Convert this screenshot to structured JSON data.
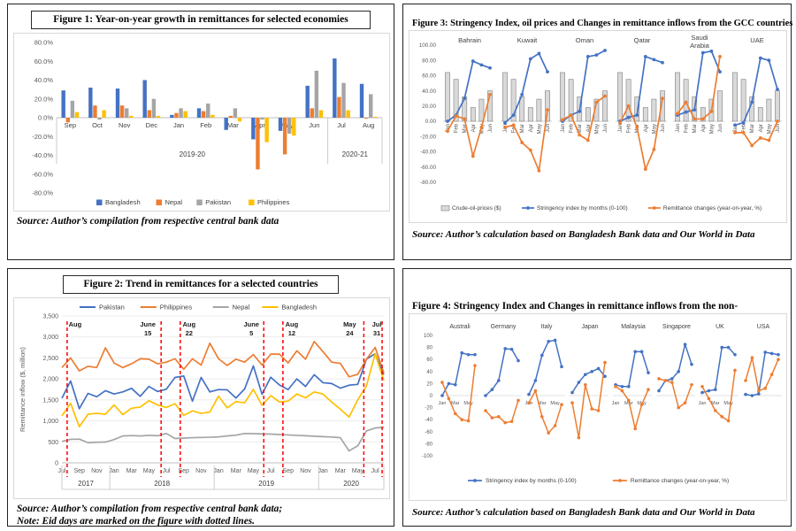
{
  "colors": {
    "blue": "#4472c4",
    "orange": "#ed7d31",
    "gray": "#a5a5a5",
    "gold": "#ffc000",
    "oil_fill": "#d9d9d9",
    "oil_stroke": "#7f7f7f",
    "eid_red": "#ff0000"
  },
  "chart_data": [
    {
      "id": "figure1",
      "type": "bar",
      "title": "Figure 1: Year-on-year growth in remittances for selected economies",
      "source": "Source: Author’s compilation from respective central bank data",
      "categories": [
        "Sep",
        "Oct",
        "Nov",
        "Dec",
        "Jan",
        "Feb",
        "Mar",
        "Apr",
        "May",
        "Jun",
        "Jul",
        "Aug"
      ],
      "period_groups": [
        {
          "label": "2019-20",
          "from": 0,
          "to": 9
        },
        {
          "label": "2020-21",
          "from": 10,
          "to": 11
        }
      ],
      "ylim": [
        -80,
        80
      ],
      "ytick_step": 20,
      "ytick_suffix": ".0%",
      "series": [
        {
          "name": "Bangladesh",
          "color": "#4472c4",
          "values": [
            29,
            32,
            31,
            40,
            3,
            10,
            -13,
            -23,
            -14,
            34,
            63,
            36
          ]
        },
        {
          "name": "Nepal",
          "color": "#ed7d31",
          "values": [
            -5,
            13,
            13,
            8,
            5,
            7,
            2,
            -55,
            -39,
            10,
            22,
            -1
          ]
        },
        {
          "name": "Pakistan",
          "color": "#a5a5a5",
          "values": [
            18,
            -2,
            10,
            20,
            10,
            15,
            10,
            -2,
            -17,
            50,
            37,
            25
          ]
        },
        {
          "name": "Philippines",
          "color": "#ffc000",
          "values": [
            6,
            8,
            2,
            2,
            7,
            3,
            -4,
            -26,
            -19,
            8,
            8,
            1
          ]
        }
      ]
    },
    {
      "id": "figure2",
      "type": "line",
      "title": "Figure 2: Trend in remittances for a selected countries",
      "source": "Source: Author’s compilation from respective central bank data;",
      "note": "Note: Eid days are marked on the figure with dotted lines.",
      "ylabel": "Remittance inflow ($, million)",
      "ylim": [
        0,
        3500
      ],
      "ytick_step": 500,
      "xtick_labels": [
        "Jul",
        "Sep",
        "Nov",
        "Jan",
        "Mar",
        "May",
        "Jul",
        "Sep",
        "Nov",
        "Jan",
        "Mar",
        "May",
        "Jul",
        "Sep",
        "Nov",
        "Jan",
        "Mar",
        "May",
        "Jul"
      ],
      "years": [
        {
          "label": "2017",
          "from": 0,
          "to": 5
        },
        {
          "label": "2018",
          "from": 6,
          "to": 17
        },
        {
          "label": "2019",
          "from": 18,
          "to": 29
        },
        {
          "label": "2020",
          "from": 30,
          "to": 37
        }
      ],
      "eid_lines": [
        {
          "label": "Aug",
          "idx": 0.6,
          "dx": 9
        },
        {
          "label": "June 15",
          "idx": 11.4,
          "dx": -15
        },
        {
          "label": "Aug 22",
          "idx": 13.6,
          "dx": 10
        },
        {
          "label": "June 5",
          "idx": 23.2,
          "dx": -14
        },
        {
          "label": "Aug 12",
          "idx": 25.4,
          "dx": 10
        },
        {
          "label": "May 24",
          "idx": 34.7,
          "dx": -16
        },
        {
          "label": "Jul 31",
          "idx": 36.8,
          "dx": -6
        }
      ],
      "series": [
        {
          "name": "Pakistan",
          "color": "#4472c4",
          "values": [
            1540,
            1950,
            1290,
            1655,
            1575,
            1720,
            1640,
            1690,
            1775,
            1585,
            1820,
            1700,
            1755,
            2035,
            2070,
            1470,
            2035,
            1690,
            1745,
            1740,
            1545,
            1760,
            2310,
            1635,
            2040,
            1855,
            1745,
            2000,
            1820,
            2100,
            1910,
            1890,
            1780,
            1850,
            1870,
            2470,
            2600,
            2100
          ]
        },
        {
          "name": "Philippines",
          "color": "#ed7d31",
          "values": [
            2270,
            2500,
            2190,
            2300,
            2270,
            2740,
            2380,
            2270,
            2360,
            2480,
            2470,
            2360,
            2400,
            2480,
            2230,
            2480,
            2330,
            2850,
            2480,
            2320,
            2470,
            2400,
            2580,
            2330,
            2590,
            2590,
            2380,
            2670,
            2470,
            2890,
            2650,
            2400,
            2370,
            2050,
            2110,
            2470,
            2750,
            2150
          ]
        },
        {
          "name": "Nepal",
          "color": "#a5a5a5",
          "values": [
            510,
            560,
            565,
            480,
            490,
            495,
            555,
            640,
            650,
            640,
            655,
            645,
            700,
            580,
            590,
            600,
            605,
            610,
            620,
            640,
            660,
            700,
            695,
            690,
            685,
            675,
            665,
            655,
            645,
            635,
            625,
            615,
            600,
            285,
            405,
            760,
            830,
            850
          ]
        },
        {
          "name": "Bangladesh",
          "color": "#ffc000",
          "values": [
            1120,
            1420,
            860,
            1160,
            1180,
            1160,
            1380,
            1150,
            1300,
            1330,
            1480,
            1380,
            1320,
            1410,
            1130,
            1240,
            1180,
            1210,
            1590,
            1310,
            1460,
            1430,
            1750,
            1370,
            1600,
            1450,
            1470,
            1640,
            1550,
            1690,
            1640,
            1450,
            1280,
            1090,
            1500,
            1830,
            2600,
            1960
          ]
        }
      ]
    },
    {
      "id": "figure3",
      "type": "panel-combo",
      "title": "Figure 3: Stringency Index, oil prices and Changes in remittance inflows from the GCC countries",
      "source": "Source:  Author’s calculation based on Bangladesh Bank data and Our World in Data",
      "months": [
        "Jan",
        "Feb",
        "Mar",
        "Apr",
        "May",
        "Jun"
      ],
      "ylim": [
        -80,
        100
      ],
      "ytick_step": 20,
      "ytick_decimals": 2,
      "oil_prices": [
        64,
        55,
        32,
        18,
        29,
        40
      ],
      "panels": [
        {
          "name": "Bahrain",
          "stringency": [
            0,
            8,
            30,
            79,
            74,
            70
          ],
          "remittance": [
            -13,
            7,
            3,
            -46,
            -8,
            35
          ]
        },
        {
          "name": "Kuwait",
          "stringency": [
            -2,
            8,
            35,
            82,
            89,
            65
          ],
          "remittance": [
            -8,
            -5,
            -28,
            -38,
            -65,
            15
          ]
        },
        {
          "name": "Oman",
          "stringency": [
            0,
            8,
            13,
            85,
            87,
            93
          ],
          "remittance": [
            2,
            8,
            -18,
            -25,
            25,
            33
          ]
        },
        {
          "name": "Qatar",
          "stringency": [
            0,
            5,
            8,
            85,
            81,
            77
          ],
          "remittance": [
            -2,
            20,
            -8,
            -63,
            -37,
            30
          ]
        },
        {
          "name": "Saudi Arabia",
          "stringency": [
            8,
            12,
            15,
            90,
            92,
            65
          ],
          "remittance": [
            10,
            25,
            3,
            3,
            13,
            85
          ]
        },
        {
          "name": "UAE",
          "stringency": [
            -5,
            -2,
            25,
            83,
            80,
            42
          ],
          "remittance": [
            -15,
            -15,
            -32,
            -22,
            -25,
            0
          ]
        }
      ],
      "legend": [
        "Crude-oil-prices ($)",
        "Stringency index by months (0-100)",
        "Remittance changes (year-on-year, %)"
      ]
    },
    {
      "id": "figure4",
      "type": "panel-lines",
      "title": "Figure 4: Stringency Index and Changes in remittance inflows from the non-",
      "source": "Source:  Author’s calculation based on Bangladesh Bank data and Our World in Data",
      "months": [
        "Jan",
        "Mar",
        "May"
      ],
      "ylim": [
        -100,
        100
      ],
      "ytick_step": 20,
      "panels": [
        {
          "name": "Australi",
          "stringency": [
            0,
            20,
            18,
            71,
            68,
            68
          ],
          "remittance": [
            22,
            -5,
            -30,
            -40,
            -42,
            50
          ]
        },
        {
          "name": "Germany",
          "stringency": [
            0,
            10,
            25,
            78,
            77,
            58
          ],
          "remittance": [
            -25,
            -37,
            -35,
            -45,
            -43,
            -8
          ]
        },
        {
          "name": "Italy",
          "stringency": [
            2,
            25,
            67,
            90,
            92,
            48
          ],
          "remittance": [
            -12,
            8,
            -35,
            -62,
            -50,
            -15
          ]
        },
        {
          "name": "Japan",
          "stringency": [
            5,
            22,
            35,
            40,
            45,
            32
          ],
          "remittance": [
            -12,
            -70,
            18,
            -22,
            -25,
            55
          ]
        },
        {
          "name": "Malaysia",
          "stringency": [
            18,
            15,
            15,
            73,
            73,
            38
          ],
          "remittance": [
            15,
            8,
            -8,
            -55,
            -15,
            10
          ]
        },
        {
          "name": "Singapore",
          "stringency": [
            8,
            25,
            28,
            40,
            85,
            52
          ],
          "remittance": [
            28,
            25,
            22,
            -20,
            -12,
            18
          ]
        },
        {
          "name": "UK",
          "stringency": [
            5,
            8,
            10,
            80,
            80,
            68
          ],
          "remittance": [
            15,
            -5,
            -25,
            -35,
            -42,
            42
          ]
        },
        {
          "name": "USA",
          "stringency": [
            2,
            0,
            3,
            72,
            70,
            68
          ],
          "remittance": [
            25,
            63,
            8,
            12,
            35,
            60
          ]
        }
      ],
      "legend": [
        "Stringency index by months (0-100)",
        "Remittance changes (year-on-year, %)"
      ]
    }
  ]
}
